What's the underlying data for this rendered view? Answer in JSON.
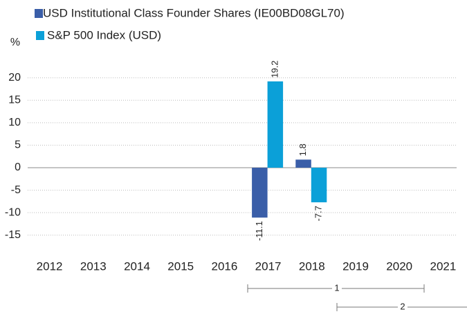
{
  "chart_data": {
    "type": "bar",
    "y_label": "%",
    "categories": [
      "2012",
      "2013",
      "2014",
      "2015",
      "2016",
      "2017",
      "2018",
      "2019",
      "2020",
      "2021"
    ],
    "series": [
      {
        "name": "USD Institutional Class Founder Shares (IE00BD08GL70)",
        "color": "#3a5ea8",
        "values": [
          null,
          null,
          null,
          null,
          null,
          -11.1,
          1.8,
          null,
          null,
          null
        ]
      },
      {
        "name": "S&P 500 Index (USD)",
        "color": "#0ba0d8",
        "values": [
          null,
          null,
          null,
          null,
          null,
          19.2,
          -7.7,
          null,
          null,
          null
        ]
      }
    ],
    "ylim": [
      -20,
      25
    ],
    "yticks": [
      -15,
      -10,
      -5,
      0,
      5,
      10,
      15,
      20
    ],
    "grid": true,
    "annotations": [
      "1",
      "2"
    ]
  }
}
